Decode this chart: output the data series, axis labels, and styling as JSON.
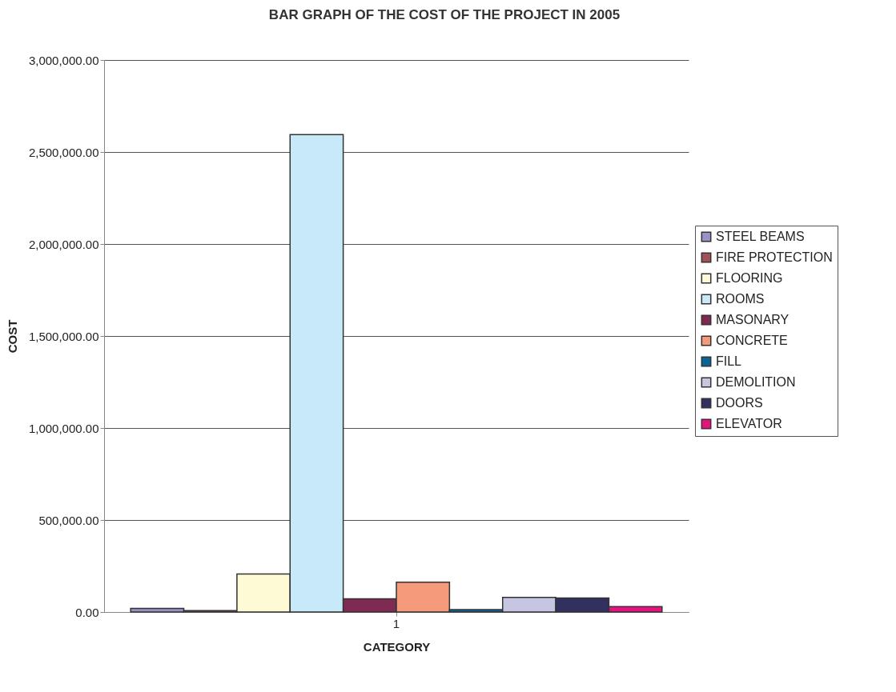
{
  "chart_data": {
    "type": "bar",
    "title": "BAR GRAPH OF THE COST OF THE PROJECT IN 2005",
    "xlabel": "CATEGORY",
    "ylabel": "COST",
    "categories": [
      "1"
    ],
    "series": [
      {
        "name": "STEEL BEAMS",
        "color": "#9a91c8",
        "values": [
          20000
        ]
      },
      {
        "name": "FIRE PROTECTION",
        "color": "#a34f5a",
        "values": [
          8000
        ]
      },
      {
        "name": "FLOORING",
        "color": "#fffad6",
        "values": [
          207000
        ]
      },
      {
        "name": "ROOMS",
        "color": "#c8e9f8",
        "values": [
          2595000
        ]
      },
      {
        "name": "MASONARY",
        "color": "#7f2a52",
        "values": [
          72000
        ]
      },
      {
        "name": "CONCRETE",
        "color": "#f59a7a",
        "values": [
          162000
        ]
      },
      {
        "name": "FILL",
        "color": "#0a6496",
        "values": [
          13000
        ]
      },
      {
        "name": "DEMOLITION",
        "color": "#c6c5e2",
        "values": [
          79000
        ]
      },
      {
        "name": "DOORS",
        "color": "#32305f",
        "values": [
          76000
        ]
      },
      {
        "name": "ELEVATOR",
        "color": "#e8117f",
        "values": [
          29000
        ]
      }
    ],
    "ylim": [
      0,
      3000000
    ],
    "yticks": [
      {
        "value": 0,
        "label": "0.00"
      },
      {
        "value": 500000,
        "label": "500,000.00"
      },
      {
        "value": 1000000,
        "label": "1,000,000.00"
      },
      {
        "value": 1500000,
        "label": "1,500,000.00"
      },
      {
        "value": 2000000,
        "label": "2,000,000.00"
      },
      {
        "value": 2500000,
        "label": "2,500,000.00"
      },
      {
        "value": 3000000,
        "label": "3,000,000.00"
      }
    ],
    "grid": "y",
    "legend": "right"
  }
}
